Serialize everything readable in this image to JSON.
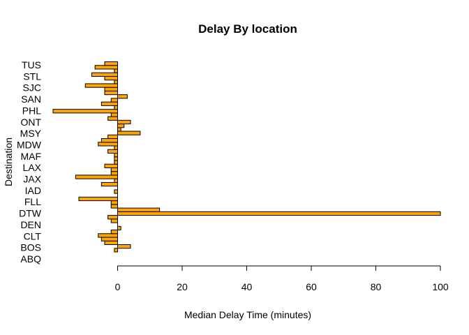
{
  "chart_data": {
    "type": "bar",
    "orientation": "horizontal",
    "title": "Delay By location",
    "xlabel": "Median Delay Time (minutes)",
    "ylabel": "Destination",
    "xlim": [
      -20,
      100
    ],
    "x_ticks": [
      0,
      20,
      40,
      60,
      80,
      100
    ],
    "bar_color": "#FFA500",
    "bar_edge_color": "#000000",
    "grid": false,
    "legend": "none",
    "category_labels": [
      "ABQ",
      "BOS",
      "CLT",
      "DEN",
      "DTW",
      "FLL",
      "IAD",
      "JAX",
      "LAX",
      "MAF",
      "MDW",
      "MSY",
      "ONT",
      "PHL",
      "SAN",
      "SJC",
      "STL",
      "TUS"
    ],
    "values": [
      -1,
      4,
      -4,
      -5,
      -6,
      -2,
      1,
      0,
      -2,
      -3,
      100,
      13,
      -2,
      -2,
      -12,
      0,
      -1,
      0,
      -5,
      -1,
      -13,
      -2,
      -2,
      -4,
      -1,
      -1,
      -1,
      -3,
      -1,
      -6,
      -5,
      -3,
      7,
      1,
      2,
      4,
      -3,
      -2,
      -20,
      -1,
      -5,
      -2,
      3,
      -4,
      -4,
      -10,
      -1,
      -4,
      -8,
      -1,
      -7,
      -4
    ]
  }
}
